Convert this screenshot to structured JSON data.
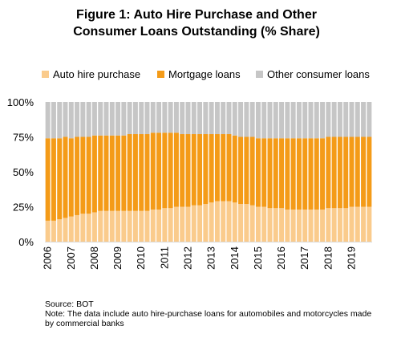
{
  "title_line1": "Figure 1: Auto Hire Purchase and Other",
  "title_line2": "Consumer Loans Outstanding (% Share)",
  "colors": {
    "auto": "#FACB8C",
    "mortgage": "#F49B18",
    "other": "#C6C6C6",
    "axis": "#D9D9D9"
  },
  "legend": [
    {
      "name": "Auto hire purchase",
      "color": "#FACB8C"
    },
    {
      "name": "Mortgage loans",
      "color": "#F49B18"
    },
    {
      "name": "Other consumer loans",
      "color": "#C6C6C6"
    }
  ],
  "source": "Source: BOT",
  "note": "Note: The data include auto hire-purchase loans for automobiles and motorcycles made by commercial banks",
  "chart_data": {
    "type": "bar",
    "stacked": true,
    "title": "Figure 1: Auto Hire Purchase and Other Consumer Loans Outstanding (% Share)",
    "ylim": [
      0,
      100
    ],
    "yticks": [
      "0%",
      "25%",
      "50%",
      "75%",
      "100%"
    ],
    "ytick_values": [
      0,
      25,
      50,
      75,
      100
    ],
    "year_labels": [
      "2006",
      "2007",
      "2008",
      "2009",
      "2010",
      "2011",
      "2012",
      "2013",
      "2014",
      "2015",
      "2016",
      "2017",
      "2018",
      "2019"
    ],
    "quarters_per_year": 4,
    "legend_position": "top",
    "grid": false,
    "series": [
      {
        "name": "Auto hire purchase",
        "values": [
          15,
          15,
          16,
          17,
          18,
          19,
          20,
          20,
          21,
          22,
          22,
          22,
          22,
          22,
          22,
          22,
          22,
          22,
          23,
          23,
          24,
          24,
          25,
          25,
          25,
          26,
          26,
          27,
          28,
          29,
          29,
          29,
          28,
          27,
          27,
          26,
          25,
          25,
          24,
          24,
          24,
          23,
          23,
          23,
          23,
          23,
          23,
          23,
          24,
          24,
          24,
          24,
          25,
          25,
          25,
          25
        ]
      },
      {
        "name": "Mortgage loans",
        "values": [
          59,
          59,
          58,
          58,
          56,
          56,
          55,
          55,
          55,
          54,
          54,
          54,
          54,
          54,
          55,
          55,
          55,
          55,
          55,
          55,
          54,
          54,
          53,
          52,
          52,
          51,
          51,
          50,
          49,
          48,
          48,
          48,
          48,
          48,
          48,
          49,
          49,
          49,
          50,
          50,
          50,
          51,
          51,
          51,
          51,
          51,
          51,
          51,
          51,
          51,
          51,
          51,
          50,
          50,
          50,
          50
        ]
      },
      {
        "name": "Other consumer loans",
        "values": [
          26,
          26,
          26,
          25,
          26,
          25,
          25,
          25,
          24,
          24,
          24,
          24,
          24,
          24,
          23,
          23,
          23,
          23,
          22,
          22,
          22,
          22,
          22,
          23,
          23,
          23,
          23,
          23,
          23,
          23,
          23,
          23,
          24,
          25,
          25,
          25,
          26,
          26,
          26,
          26,
          26,
          26,
          26,
          26,
          26,
          26,
          26,
          26,
          25,
          25,
          25,
          25,
          25,
          25,
          25,
          25
        ]
      }
    ]
  }
}
